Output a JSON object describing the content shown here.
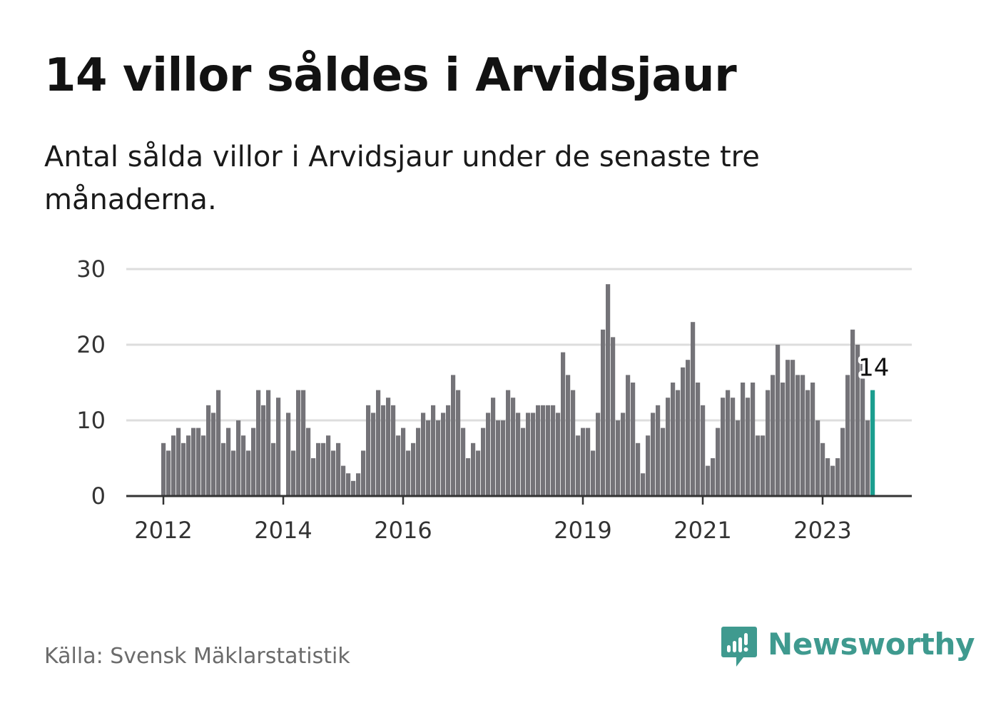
{
  "title": "14 villor såldes i Arvidsjaur",
  "subtitle": "Antal sålda villor i Arvidsjaur under de senaste tre månaderna.",
  "source": "Källa: Svensk Mäklarstatistik",
  "brand": {
    "name": "Newsworthy",
    "icon": "newsworthy-logo-icon",
    "color": "#3f9a8f"
  },
  "colors": {
    "bar": "#747378",
    "highlight": "#1b9e8f",
    "grid": "#dddddd",
    "baseline": "#333333"
  },
  "chart_data": {
    "type": "bar",
    "title": "14 villor såldes i Arvidsjaur",
    "xlabel": "",
    "ylabel": "",
    "ylim": [
      0,
      30
    ],
    "yticks": [
      "0",
      "10",
      "20",
      "30"
    ],
    "grid": true,
    "x_start": "2012-01",
    "xtick_labels": [
      {
        "label": "2012",
        "index": 0
      },
      {
        "label": "2014",
        "index": 24
      },
      {
        "label": "2016",
        "index": 48
      },
      {
        "label": "2019",
        "index": 84
      },
      {
        "label": "2021",
        "index": 108
      },
      {
        "label": "2023",
        "index": 132
      }
    ],
    "values": [
      7,
      6,
      8,
      9,
      7,
      8,
      9,
      9,
      8,
      12,
      11,
      14,
      7,
      9,
      6,
      10,
      8,
      6,
      9,
      14,
      12,
      14,
      7,
      13,
      0,
      11,
      6,
      14,
      14,
      9,
      5,
      7,
      7,
      8,
      6,
      7,
      4,
      3,
      2,
      3,
      6,
      12,
      11,
      14,
      12,
      13,
      12,
      8,
      9,
      6,
      7,
      9,
      11,
      10,
      12,
      10,
      11,
      12,
      16,
      14,
      9,
      5,
      7,
      6,
      9,
      11,
      13,
      10,
      10,
      14,
      13,
      11,
      9,
      11,
      11,
      12,
      12,
      12,
      12,
      11,
      19,
      16,
      14,
      8,
      9,
      9,
      6,
      11,
      22,
      28,
      21,
      10,
      11,
      16,
      15,
      7,
      3,
      8,
      11,
      12,
      9,
      13,
      15,
      14,
      17,
      18,
      23,
      15,
      12,
      4,
      5,
      9,
      13,
      14,
      13,
      10,
      15,
      13,
      15,
      8,
      8,
      14,
      16,
      20,
      15,
      18,
      18,
      16,
      16,
      14,
      15,
      10,
      7,
      5,
      4,
      5,
      9,
      16,
      22,
      20,
      18,
      10,
      14
    ],
    "highlight_index": 142,
    "annotation": "14"
  }
}
